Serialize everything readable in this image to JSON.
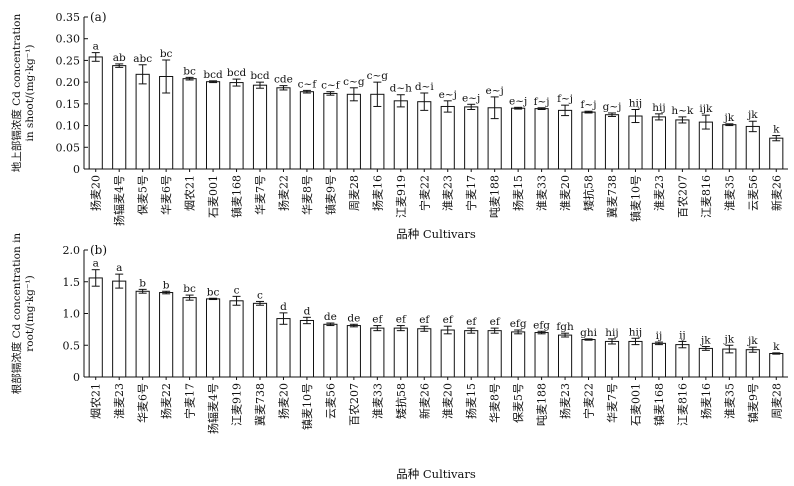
{
  "chart_data": [
    {
      "type": "bar",
      "panel_label": "(a)",
      "ylabel_lines": [
        "地上部镉浓度 Cd concentration",
        "in shoot/(mg·kg⁻¹)"
      ],
      "xlabel": "品种 Cultivars",
      "ylim": [
        0,
        0.35
      ],
      "yticks": [
        "0",
        "0.05",
        "0.10",
        "0.15",
        "0.20",
        "0.25",
        "0.30",
        "0.35"
      ],
      "grid": false,
      "categories": [
        "扬麦20",
        "扬辐麦4号",
        "保麦5号",
        "华麦6号",
        "烟农21",
        "石麦001",
        "镇麦168",
        "华麦7号",
        "扬麦22",
        "华麦8号",
        "镇麦9号",
        "周麦28",
        "扬麦16",
        "江麦919",
        "宁麦22",
        "淮麦23",
        "宁麦17",
        "吨麦188",
        "扬麦15",
        "淮麦33",
        "淮麦20",
        "矮抗58",
        "冀麦738",
        "镇麦10号",
        "淮麦23",
        "百农207",
        "江麦816",
        "淮麦35",
        "云麦56",
        "新麦26"
      ],
      "values": [
        0.258,
        0.238,
        0.218,
        0.213,
        0.208,
        0.201,
        0.199,
        0.193,
        0.187,
        0.178,
        0.174,
        0.172,
        0.172,
        0.157,
        0.155,
        0.144,
        0.143,
        0.141,
        0.14,
        0.139,
        0.135,
        0.131,
        0.125,
        0.122,
        0.12,
        0.113,
        0.108,
        0.102,
        0.098,
        0.071
      ],
      "errors": [
        0.01,
        0.004,
        0.022,
        0.038,
        0.003,
        0.002,
        0.008,
        0.007,
        0.005,
        0.003,
        0.004,
        0.015,
        0.028,
        0.014,
        0.02,
        0.013,
        0.006,
        0.025,
        0.002,
        0.002,
        0.012,
        0.002,
        0.004,
        0.015,
        0.007,
        0.007,
        0.016,
        0.002,
        0.012,
        0.006
      ],
      "letters": [
        "a",
        "ab",
        "abc",
        "bc",
        "bc",
        "bcd",
        "bcd",
        "bcd",
        "cde",
        "c~f",
        "c~f",
        "c~g",
        "c~g",
        "d~h",
        "d~i",
        "e~j",
        "e~j",
        "e~j",
        "e~j",
        "f~j",
        "f~j",
        "f~j",
        "g~j",
        "hij",
        "hij",
        "h~k",
        "ijk",
        "jk",
        "jk",
        "k"
      ]
    },
    {
      "type": "bar",
      "panel_label": "(b)",
      "ylabel_lines": [
        "根部镉浓度 Cd concentration in",
        "root/(mg·kg⁻¹)"
      ],
      "xlabel": "品种 Cultivars",
      "ylim": [
        0,
        2.0
      ],
      "yticks": [
        "0",
        "0.5",
        "1.0",
        "1.5",
        "2.0"
      ],
      "grid": false,
      "categories": [
        "烟农21",
        "淮麦23",
        "华麦6号",
        "扬麦22",
        "宁麦17",
        "扬辐麦4号",
        "江麦919",
        "冀麦738",
        "扬麦20",
        "镇麦10号",
        "云麦56",
        "百农207",
        "淮麦33",
        "矮抗58",
        "新麦26",
        "淮麦20",
        "扬麦15",
        "华麦8号",
        "保麦5号",
        "吨麦188",
        "扬麦23",
        "宁麦22",
        "华麦7号",
        "石麦001",
        "镇麦168",
        "江麦816",
        "扬麦16",
        "淮麦35",
        "镇麦9号",
        "周麦28"
      ],
      "values": [
        1.56,
        1.51,
        1.35,
        1.33,
        1.25,
        1.23,
        1.2,
        1.16,
        0.92,
        0.89,
        0.83,
        0.81,
        0.77,
        0.77,
        0.76,
        0.74,
        0.73,
        0.73,
        0.71,
        0.7,
        0.66,
        0.59,
        0.56,
        0.56,
        0.53,
        0.51,
        0.45,
        0.44,
        0.43,
        0.37
      ],
      "errors": [
        0.13,
        0.11,
        0.03,
        0.02,
        0.04,
        0.01,
        0.07,
        0.03,
        0.09,
        0.05,
        0.02,
        0.02,
        0.04,
        0.04,
        0.04,
        0.06,
        0.04,
        0.04,
        0.03,
        0.02,
        0.03,
        0.01,
        0.04,
        0.05,
        0.02,
        0.05,
        0.03,
        0.06,
        0.04,
        0.01
      ],
      "letters": [
        "a",
        "a",
        "b",
        "b",
        "bc",
        "bc",
        "c",
        "c",
        "d",
        "d",
        "de",
        "de",
        "ef",
        "ef",
        "ef",
        "ef",
        "ef",
        "ef",
        "efg",
        "efg",
        "fgh",
        "ghi",
        "hij",
        "hij",
        "ij",
        "ij",
        "jk",
        "jk",
        "jk",
        "k"
      ]
    }
  ]
}
